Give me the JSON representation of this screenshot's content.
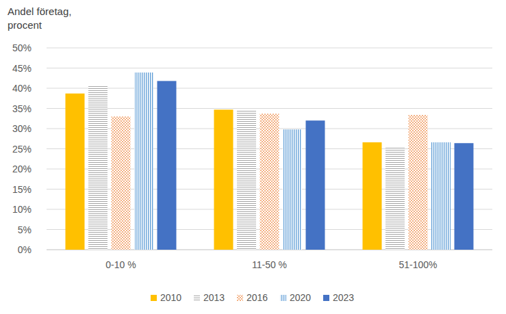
{
  "chart_data": {
    "type": "bar",
    "y_label": "Andel företag, procent",
    "categories": [
      "0-10 %",
      "11-50 %",
      "51-100%"
    ],
    "series": [
      {
        "name": "2010",
        "color": "#ffc000",
        "values": [
          38.7,
          34.7,
          26.6
        ]
      },
      {
        "name": "2013",
        "color": "#a5a5a5",
        "values": [
          40.5,
          34.4,
          25.3
        ]
      },
      {
        "name": "2016",
        "color": "#f4b183",
        "values": [
          33.0,
          33.7,
          33.4
        ]
      },
      {
        "name": "2020",
        "color": "#5b9bd5",
        "values": [
          43.9,
          29.8,
          26.6
        ]
      },
      {
        "name": "2023",
        "color": "#4472c4",
        "values": [
          41.8,
          32.0,
          26.4
        ]
      }
    ],
    "ylim": [
      0,
      50
    ],
    "yticks": [
      {
        "value": 0,
        "label": "0%"
      },
      {
        "value": 5,
        "label": "5%"
      },
      {
        "value": 10,
        "label": "10%"
      },
      {
        "value": 15,
        "label": "15%"
      },
      {
        "value": 20,
        "label": "20%"
      },
      {
        "value": 25,
        "label": "25%"
      },
      {
        "value": 30,
        "label": "30%"
      },
      {
        "value": 35,
        "label": "35%"
      },
      {
        "value": 40,
        "label": "40%"
      },
      {
        "value": 45,
        "label": "45%"
      },
      {
        "value": 50,
        "label": "50%"
      }
    ],
    "grid": true,
    "legend": "bottom"
  }
}
